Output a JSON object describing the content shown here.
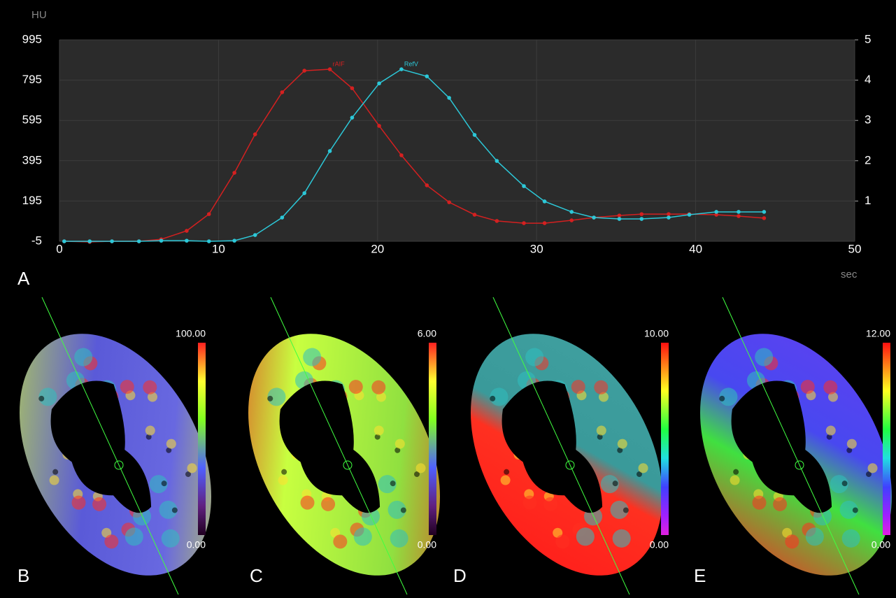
{
  "chart_data": {
    "type": "line",
    "y_label": "HU",
    "x_label": "sec",
    "x": [
      0.3,
      1.9,
      3.3,
      5,
      6.4,
      8,
      9.4,
      11,
      12.3,
      14,
      15.4,
      17,
      18.4,
      20.1,
      21.5,
      23.1,
      24.5,
      26.1,
      27.5,
      29.2,
      30.5,
      32.2,
      33.6,
      35.2,
      36.6,
      38.3,
      39.6,
      41.3,
      42.7,
      44.3
    ],
    "series": [
      {
        "name": "rAIF",
        "color": "#d42020",
        "values": [
          -5,
          -8,
          -5,
          -5,
          5,
          47,
          130,
          335,
          526,
          735,
          842,
          849,
          755,
          568,
          422,
          273,
          189,
          127,
          96,
          85,
          85,
          99,
          113,
          123,
          130,
          130,
          130,
          127,
          120,
          110
        ]
      },
      {
        "name": "RefV",
        "color": "#2cc8d8",
        "values": [
          -5,
          -5,
          -5,
          -5,
          -2,
          -2,
          -5,
          -2,
          26,
          113,
          234,
          443,
          609,
          779,
          849,
          814,
          707,
          523,
          394,
          269,
          193,
          141,
          113,
          106,
          106,
          113,
          127,
          141,
          141,
          141
        ]
      }
    ],
    "xlim": [
      0,
      50
    ],
    "xticks": [
      0,
      10,
      20,
      30,
      40,
      50
    ],
    "ylim": [
      -5,
      995
    ],
    "yticks": [
      -5,
      195,
      395,
      595,
      795,
      995
    ],
    "y2lim": [
      0,
      5
    ],
    "y2ticks": [
      1,
      2,
      3,
      4,
      5
    ],
    "grid": true
  },
  "panel_label": "A",
  "panels": [
    {
      "letter": "B",
      "max": "100.00",
      "min": "0.00",
      "scale": "rainbow"
    },
    {
      "letter": "C",
      "max": "6.00",
      "min": "0.00",
      "scale": "rainbow"
    },
    {
      "letter": "D",
      "max": "10.00",
      "min": "0.00",
      "scale": "spectrum"
    },
    {
      "letter": "E",
      "max": "12.00",
      "min": "0.00",
      "scale": "spectrum"
    }
  ]
}
